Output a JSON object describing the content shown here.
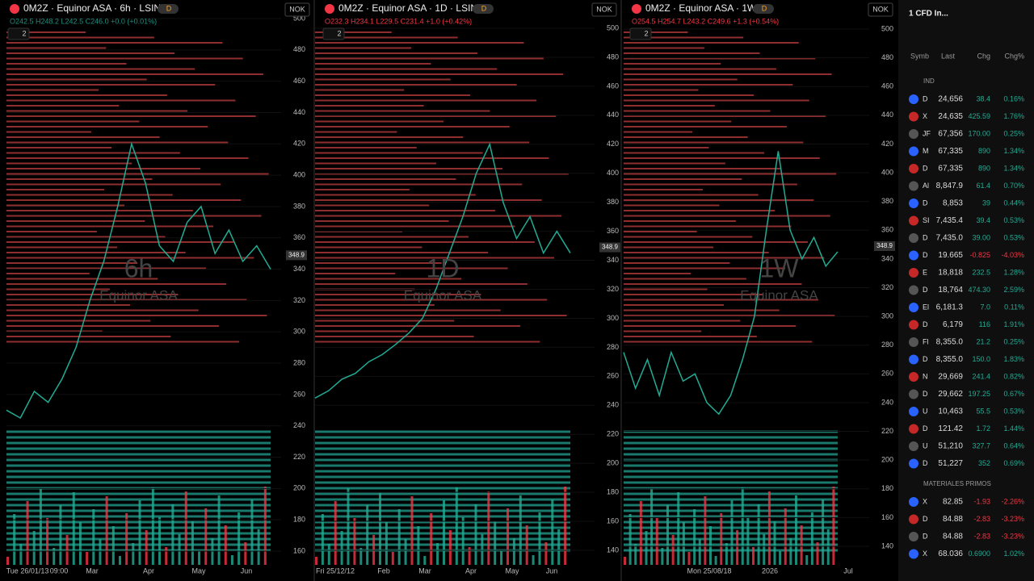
{
  "panels": [
    {
      "title": "0M2Z · Equinor ASA · 6h · LSIN",
      "badge": "D",
      "ohlc": "O242.5 H248.2 L242.5 C246.0 +0.0 (+0.01%)",
      "currency": "NOK",
      "count": "2",
      "watermark": "6h",
      "watermark_name": "Equinor ASA",
      "price_label": "348.9",
      "yticks": [
        500,
        480,
        460,
        440,
        420,
        400,
        380,
        360,
        340,
        320,
        300,
        280,
        260,
        240,
        220,
        200,
        180,
        160
      ],
      "xlabels": [
        "Tue 26/01/13",
        "09:00",
        "Mar",
        "Apr",
        "May",
        "Jun"
      ],
      "close": [
        250,
        245,
        262,
        255,
        270,
        290,
        320,
        345,
        380,
        420,
        395,
        355,
        345,
        370,
        380,
        350,
        365,
        345,
        355,
        340
      ]
    },
    {
      "title": "0M2Z · Equinor ASA · 1D · LSIN",
      "badge": "D",
      "ohlc": "O232.3 H234.1 L229.5 C231.4 +1.0 (+0.42%)",
      "currency": "NOK",
      "count": "2",
      "watermark": "1D",
      "watermark_name": "Equinor ASA",
      "price_label": "348.9",
      "yticks": [
        500,
        480,
        460,
        440,
        420,
        400,
        380,
        360,
        340,
        320,
        300,
        280,
        260,
        240,
        220,
        200,
        180,
        160,
        140
      ],
      "xlabels": [
        "Fri 25/12/12",
        "Feb",
        "Mar",
        "Apr",
        "May",
        "Jun"
      ],
      "close": [
        245,
        250,
        258,
        262,
        270,
        275,
        282,
        290,
        300,
        320,
        345,
        370,
        400,
        420,
        380,
        355,
        370,
        345,
        360,
        345
      ]
    },
    {
      "title": "0M2Z · Equinor ASA · 1W",
      "badge": "D",
      "ohlc": "O254.5 H254.7 L243.2 C249.6 +1.3 (+0.54%)",
      "currency": "NOK",
      "count": "2",
      "watermark": "1W",
      "watermark_name": "Equinor ASA",
      "price_label": "348.9",
      "yticks": [
        500,
        480,
        460,
        440,
        420,
        400,
        380,
        360,
        340,
        320,
        300,
        280,
        260,
        240,
        220,
        200,
        180,
        160,
        140
      ],
      "xlabels": [
        "Mon 25/08/18",
        "2026",
        "Jul"
      ],
      "close": [
        275,
        250,
        270,
        245,
        275,
        255,
        260,
        240,
        232,
        245,
        270,
        300,
        360,
        415,
        360,
        340,
        355,
        335,
        345
      ]
    }
  ],
  "watchlist": {
    "title": "1 CFD In...",
    "columns": [
      "Symb",
      "Last",
      "Chg",
      "Chg%"
    ],
    "sections": [
      {
        "name": "IND",
        "rows": [
          [
            "D",
            "24,656",
            "38.4",
            "0.16%"
          ],
          [
            "X",
            "24,635",
            "425.59",
            "1.76%"
          ],
          [
            "JF",
            "67,356",
            "170.00",
            "0.25%"
          ],
          [
            "M",
            "67,335",
            "890",
            "1.34%"
          ],
          [
            "D",
            "67,335",
            "890",
            "1.34%"
          ],
          [
            "Al",
            "8,847.9",
            "61.4",
            "0.70%"
          ],
          [
            "D",
            "8,853",
            "39",
            "0.44%"
          ],
          [
            "SI",
            "7,435.4",
            "39.4",
            "0.53%"
          ],
          [
            "D",
            "7,435.0",
            "39.00",
            "0.53%"
          ],
          [
            "D",
            "19.665",
            "-0.825",
            "-4.03%"
          ],
          [
            "E",
            "18,818",
            "232.5",
            "1.28%"
          ],
          [
            "D",
            "18,764",
            "474.30",
            "2.59%"
          ],
          [
            "El",
            "6,181.3",
            "7.0",
            "0.11%"
          ],
          [
            "D",
            "6,179",
            "116",
            "1.91%"
          ],
          [
            "Fl",
            "8,355.0",
            "21.2",
            "0.25%"
          ],
          [
            "D",
            "8,355.0",
            "150.0",
            "1.83%"
          ],
          [
            "N",
            "29,669",
            "241.4",
            "0.82%"
          ],
          [
            "D",
            "29,662",
            "197.25",
            "0.67%"
          ],
          [
            "U",
            "10,463",
            "55.5",
            "0.53%"
          ],
          [
            "D",
            "121.42",
            "1.72",
            "1.44%"
          ],
          [
            "U",
            "51,210",
            "327.7",
            "0.64%"
          ],
          [
            "D",
            "51,227",
            "352",
            "0.69%"
          ]
        ]
      },
      {
        "name": "MATERIALES PRIMOS",
        "rows": [
          [
            "X",
            "82.85",
            "-1.93",
            "-2.26%"
          ],
          [
            "D",
            "84.88",
            "-2.83",
            "-3.23%"
          ],
          [
            "D",
            "84.88",
            "-2.83",
            "-3.23%"
          ],
          [
            "X",
            "68.036",
            "0.6900",
            "1.02%"
          ]
        ]
      }
    ]
  }
}
